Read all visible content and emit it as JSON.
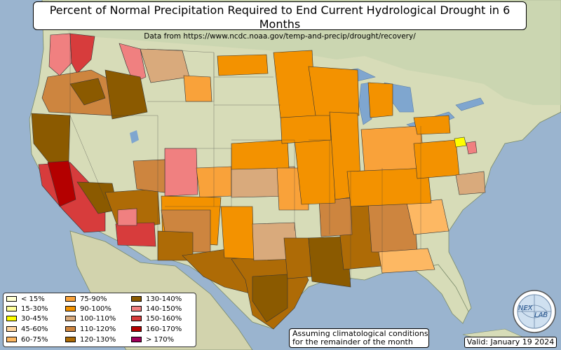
{
  "title": "Percent of Normal Precipitation Required to End Current Hydrological Drought in 6 Months",
  "subtitle": "Data from https://www.ncdc.noaa.gov/temp-and-precip/drought/recovery/",
  "note_line1": "Assuming climatological conditions",
  "note_line2": "for the remainder of the month",
  "valid": "Valid: January 19 2024",
  "logo": {
    "icon": "nexlab-globe-logo",
    "text_left": "NEX",
    "text_right": "LAB"
  },
  "legend": [
    {
      "label": "< 15%",
      "color": "#ffffd2"
    },
    {
      "label": "15-30%",
      "color": "#ffff9c"
    },
    {
      "label": "30-45%",
      "color": "#ffff00"
    },
    {
      "label": "45-60%",
      "color": "#fdd49e"
    },
    {
      "label": "60-75%",
      "color": "#fdb863"
    },
    {
      "label": "75-90%",
      "color": "#f9a23a"
    },
    {
      "label": "90-100%",
      "color": "#f39200"
    },
    {
      "label": "100-110%",
      "color": "#d9aa7c"
    },
    {
      "label": "110-120%",
      "color": "#cd853f"
    },
    {
      "label": "120-130%",
      "color": "#ae6b06"
    },
    {
      "label": "130-140%",
      "color": "#8b5a00"
    },
    {
      "label": "140-150%",
      "color": "#f08080"
    },
    {
      "label": "150-160%",
      "color": "#d73c3c"
    },
    {
      "label": "160-170%",
      "color": "#b40000"
    },
    {
      "label": "> 170%",
      "color": "#a0005a"
    }
  ],
  "colors": {
    "ocean": "#9ab4cf",
    "land": "#d6dcb7",
    "land_dark": "#b7c9a0",
    "lakes": "#7fa6cf"
  }
}
